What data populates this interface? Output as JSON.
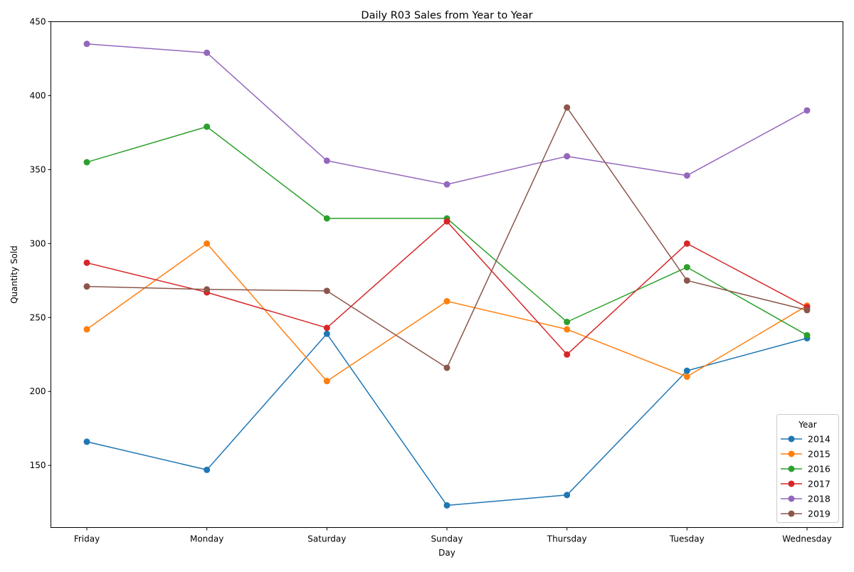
{
  "chart_data": {
    "type": "line",
    "title": "Daily R03 Sales from Year to Year",
    "xlabel": "Day",
    "ylabel": "Quantity Sold",
    "categories": [
      "Friday",
      "Monday",
      "Saturday",
      "Sunday",
      "Thursday",
      "Tuesday",
      "Wednesday"
    ],
    "ylim": [
      108,
      450
    ],
    "yticks": [
      150,
      200,
      250,
      300,
      350,
      400,
      450
    ],
    "grid": false,
    "legend": {
      "title": "Year",
      "placement": "lower-right"
    },
    "markers": true,
    "series": [
      {
        "name": "2014",
        "color": "#1f77b4",
        "values": [
          166,
          147,
          239,
          123,
          130,
          214,
          236
        ]
      },
      {
        "name": "2015",
        "color": "#ff7f0e",
        "values": [
          242,
          300,
          207,
          261,
          242,
          210,
          258
        ]
      },
      {
        "name": "2016",
        "color": "#2ca02c",
        "values": [
          355,
          379,
          317,
          317,
          247,
          284,
          238
        ]
      },
      {
        "name": "2017",
        "color": "#d62728",
        "values": [
          287,
          267,
          243,
          315,
          225,
          300,
          257
        ]
      },
      {
        "name": "2018",
        "color": "#9467bd",
        "values": [
          435,
          429,
          356,
          340,
          359,
          346,
          390
        ]
      },
      {
        "name": "2019",
        "color": "#8c564b",
        "values": [
          271,
          269,
          268,
          216,
          392,
          275,
          255
        ]
      }
    ]
  }
}
